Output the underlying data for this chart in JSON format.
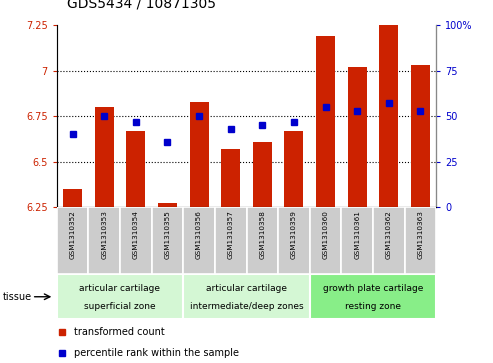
{
  "title": "GDS5434 / 10871305",
  "samples": [
    "GSM1310352",
    "GSM1310353",
    "GSM1310354",
    "GSM1310355",
    "GSM1310356",
    "GSM1310357",
    "GSM1310358",
    "GSM1310359",
    "GSM1310360",
    "GSM1310361",
    "GSM1310362",
    "GSM1310363"
  ],
  "bar_values": [
    6.35,
    6.8,
    6.67,
    6.27,
    6.83,
    6.57,
    6.61,
    6.67,
    7.19,
    7.02,
    7.25,
    7.03
  ],
  "dot_percentiles": [
    40,
    50,
    47,
    36,
    50,
    43,
    45,
    47,
    55,
    53,
    57,
    53
  ],
  "bar_color": "#cc2200",
  "dot_color": "#0000cc",
  "ylim_left": [
    6.25,
    7.25
  ],
  "ylim_right": [
    0,
    100
  ],
  "yticks_left": [
    6.25,
    6.5,
    6.75,
    7.0,
    7.25
  ],
  "ytick_labels_left": [
    "6.25",
    "6.5",
    "6.75",
    "7",
    "7.25"
  ],
  "yticks_right": [
    0,
    25,
    50,
    75,
    100
  ],
  "ytick_labels_right": [
    "0",
    "25",
    "50",
    "75",
    "100%"
  ],
  "groups": [
    {
      "label_line1": "articular cartilage",
      "label_line2": "superficial zone",
      "start": 0,
      "end": 3,
      "color": "#d4f7d4"
    },
    {
      "label_line1": "articular cartilage",
      "label_line2": "intermediate/deep zones",
      "start": 4,
      "end": 7,
      "color": "#d4f7d4"
    },
    {
      "label_line1": "growth plate cartilage",
      "label_line2": "resting zone",
      "start": 8,
      "end": 11,
      "color": "#88ee88"
    }
  ],
  "legend_items": [
    {
      "label": "transformed count",
      "color": "#cc2200"
    },
    {
      "label": "percentile rank within the sample",
      "color": "#0000cc"
    }
  ],
  "tick_fontsize": 7,
  "bar_label_fontsize": 5.2,
  "group_fontsize": 6.5,
  "legend_fontsize": 7,
  "title_fontsize": 10
}
